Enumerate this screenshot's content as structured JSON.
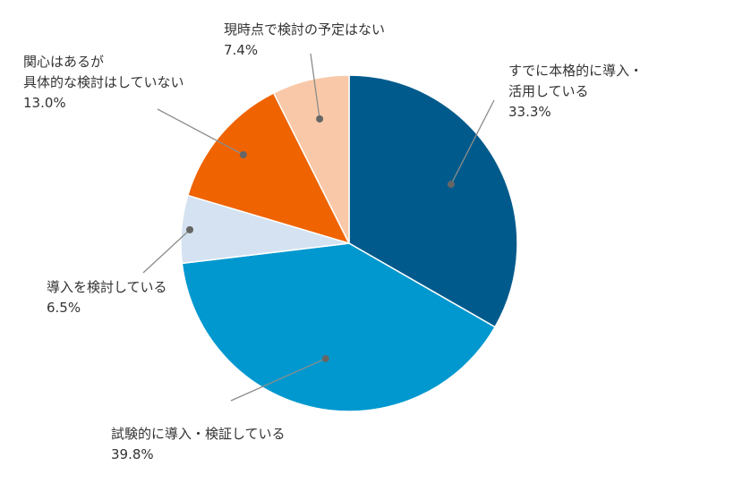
{
  "chart_data": {
    "type": "pie",
    "slices": [
      {
        "name": "slice-fully-adopted",
        "label_lines": [
          "すでに本格的に導入・",
          "活用している"
        ],
        "value": 33.3,
        "value_label": "33.3%",
        "color": "#005a8c"
      },
      {
        "name": "slice-trial-adoption",
        "label_lines": [
          "試験的に導入・検証している"
        ],
        "value": 39.8,
        "value_label": "39.8%",
        "color": "#0098cf"
      },
      {
        "name": "slice-considering",
        "label_lines": [
          "導入を検討している"
        ],
        "value": 6.5,
        "value_label": "6.5%",
        "color": "#d4e2f1"
      },
      {
        "name": "slice-interested-not-concrete",
        "label_lines": [
          "関心はあるが",
          "具体的な検討はしていない"
        ],
        "value": 13.0,
        "value_label": "13.0%",
        "color": "#ef6300"
      },
      {
        "name": "slice-no-plan",
        "label_lines": [
          "現時点で検討の予定はない"
        ],
        "value": 7.4,
        "value_label": "7.4%",
        "color": "#f9c8a8"
      }
    ],
    "start_angle_deg": 0,
    "direction": "clockwise",
    "legend": "none",
    "labels": "outside with leader lines"
  }
}
